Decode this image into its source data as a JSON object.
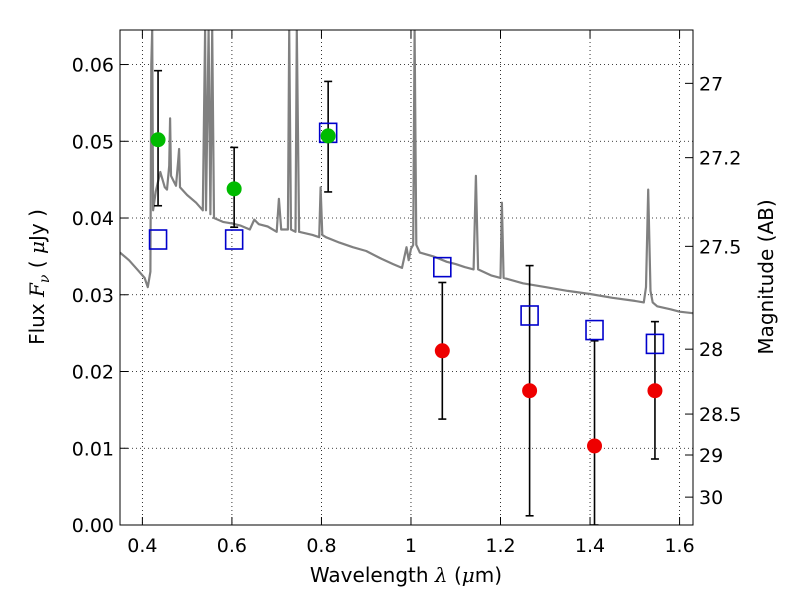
{
  "chart_data": {
    "type": "scatter",
    "xlabel": {
      "pre": "Wavelength  ",
      "sym": "λ",
      "mid": " (",
      "mu": "μ",
      "post": "m)"
    },
    "ylabel": {
      "pre": "Flux  ",
      "sym": "F",
      "sub": "ν",
      "mid": "  ( ",
      "mu": "μ",
      "post": "Jy )"
    },
    "y2label": "Magnitude (AB)",
    "xlim": [
      0.35,
      1.63
    ],
    "ylim": [
      0.0,
      0.0645
    ],
    "grid": true,
    "x_ticks": [
      {
        "v": 0.4,
        "label": "0.4"
      },
      {
        "v": 0.6,
        "label": "0.6"
      },
      {
        "v": 0.8,
        "label": "0.8"
      },
      {
        "v": 1.0,
        "label": "1"
      },
      {
        "v": 1.2,
        "label": "1.2"
      },
      {
        "v": 1.4,
        "label": "1.4"
      },
      {
        "v": 1.6,
        "label": "1.6"
      }
    ],
    "y_ticks": [
      {
        "v": 0.0,
        "label": "0.00"
      },
      {
        "v": 0.01,
        "label": "0.01"
      },
      {
        "v": 0.02,
        "label": "0.02"
      },
      {
        "v": 0.03,
        "label": "0.03"
      },
      {
        "v": 0.04,
        "label": "0.04"
      },
      {
        "v": 0.05,
        "label": "0.05"
      },
      {
        "v": 0.06,
        "label": "0.06"
      }
    ],
    "y2_ticks": [
      {
        "mag": 27,
        "label": "27"
      },
      {
        "mag": 27.2,
        "label": "27.2"
      },
      {
        "mag": 27.5,
        "label": "27.5"
      },
      {
        "mag": 28,
        "label": "28"
      },
      {
        "mag": 28.5,
        "label": "28.5"
      },
      {
        "mag": 29,
        "label": "29"
      },
      {
        "mag": 30,
        "label": "30"
      }
    ],
    "series": [
      {
        "kind": "model_spectrum",
        "color": "#808080",
        "points": [
          [
            0.35,
            0.0355
          ],
          [
            0.37,
            0.0345
          ],
          [
            0.39,
            0.0332
          ],
          [
            0.405,
            0.0322
          ],
          [
            0.412,
            0.031
          ],
          [
            0.418,
            0.033
          ],
          [
            0.42,
            0.06
          ],
          [
            0.422,
            0.0645
          ],
          [
            0.424,
            0.041
          ],
          [
            0.43,
            0.0435
          ],
          [
            0.44,
            0.046
          ],
          [
            0.45,
            0.044
          ],
          [
            0.455,
            0.0437
          ],
          [
            0.46,
            0.0468
          ],
          [
            0.462,
            0.053
          ],
          [
            0.464,
            0.0455
          ],
          [
            0.47,
            0.0448
          ],
          [
            0.475,
            0.0442
          ],
          [
            0.48,
            0.0475
          ],
          [
            0.482,
            0.049
          ],
          [
            0.484,
            0.044
          ],
          [
            0.5,
            0.043
          ],
          [
            0.52,
            0.042
          ],
          [
            0.535,
            0.041
          ],
          [
            0.54,
            0.0645
          ],
          [
            0.542,
            0.041
          ],
          [
            0.548,
            0.0645
          ],
          [
            0.552,
            0.0405
          ],
          [
            0.556,
            0.0645
          ],
          [
            0.56,
            0.04
          ],
          [
            0.58,
            0.0395
          ],
          [
            0.6,
            0.0393
          ],
          [
            0.62,
            0.039
          ],
          [
            0.64,
            0.0385
          ],
          [
            0.65,
            0.0398
          ],
          [
            0.655,
            0.0395
          ],
          [
            0.66,
            0.0392
          ],
          [
            0.68,
            0.0389
          ],
          [
            0.7,
            0.0382
          ],
          [
            0.705,
            0.0425
          ],
          [
            0.71,
            0.0385
          ],
          [
            0.725,
            0.0385
          ],
          [
            0.728,
            0.0645
          ],
          [
            0.732,
            0.0385
          ],
          [
            0.742,
            0.0382
          ],
          [
            0.745,
            0.0645
          ],
          [
            0.75,
            0.0382
          ],
          [
            0.78,
            0.0378
          ],
          [
            0.795,
            0.0375
          ],
          [
            0.798,
            0.044
          ],
          [
            0.802,
            0.0378
          ],
          [
            0.81,
            0.0375
          ],
          [
            0.84,
            0.0368
          ],
          [
            0.87,
            0.0362
          ],
          [
            0.9,
            0.0357
          ],
          [
            0.93,
            0.0348
          ],
          [
            0.96,
            0.034
          ],
          [
            0.98,
            0.0335
          ],
          [
            0.99,
            0.0362
          ],
          [
            0.995,
            0.0345
          ],
          [
            1.0,
            0.036
          ],
          [
            1.005,
            0.0365
          ],
          [
            1.008,
            0.0645
          ],
          [
            1.012,
            0.0365
          ],
          [
            1.02,
            0.0355
          ],
          [
            1.05,
            0.035
          ],
          [
            1.08,
            0.0343
          ],
          [
            1.1,
            0.034
          ],
          [
            1.12,
            0.0336
          ],
          [
            1.14,
            0.0333
          ],
          [
            1.145,
            0.0455
          ],
          [
            1.15,
            0.0333
          ],
          [
            1.18,
            0.0325
          ],
          [
            1.2,
            0.0322
          ],
          [
            1.203,
            0.042
          ],
          [
            1.207,
            0.0322
          ],
          [
            1.25,
            0.0315
          ],
          [
            1.3,
            0.031
          ],
          [
            1.35,
            0.0305
          ],
          [
            1.4,
            0.0301
          ],
          [
            1.45,
            0.0296
          ],
          [
            1.5,
            0.0292
          ],
          [
            1.52,
            0.029
          ],
          [
            1.525,
            0.031
          ],
          [
            1.53,
            0.0437
          ],
          [
            1.535,
            0.0305
          ],
          [
            1.54,
            0.029
          ],
          [
            1.55,
            0.0285
          ],
          [
            1.58,
            0.0281
          ],
          [
            1.6,
            0.0278
          ],
          [
            1.63,
            0.0276
          ]
        ]
      },
      {
        "kind": "model_photometry",
        "marker": "open-square",
        "color": "#0000cc",
        "points": [
          {
            "x": 0.435,
            "y": 0.0372
          },
          {
            "x": 0.605,
            "y": 0.0372
          },
          {
            "x": 0.815,
            "y": 0.0511
          },
          {
            "x": 1.07,
            "y": 0.0336
          },
          {
            "x": 1.265,
            "y": 0.0273
          },
          {
            "x": 1.41,
            "y": 0.0254
          },
          {
            "x": 1.545,
            "y": 0.0236
          }
        ]
      },
      {
        "kind": "detections",
        "marker": "filled-circle",
        "color": "#00bb00",
        "points": [
          {
            "x": 0.435,
            "y": 0.0502,
            "lo": 0.0416,
            "hi": 0.0592
          },
          {
            "x": 0.605,
            "y": 0.0438,
            "lo": 0.0388,
            "hi": 0.0492
          },
          {
            "x": 0.815,
            "y": 0.0507,
            "lo": 0.0434,
            "hi": 0.0578
          }
        ]
      },
      {
        "kind": "low_significance",
        "marker": "filled-circle",
        "color": "#ee0000",
        "points": [
          {
            "x": 1.07,
            "y": 0.0227,
            "lo": 0.0138,
            "hi": 0.0316
          },
          {
            "x": 1.265,
            "y": 0.0175,
            "lo": 0.0012,
            "hi": 0.0338
          },
          {
            "x": 1.41,
            "y": 0.0103,
            "lo": 0.0,
            "hi": 0.024
          },
          {
            "x": 1.545,
            "y": 0.0175,
            "lo": 0.0086,
            "hi": 0.0265
          }
        ]
      }
    ]
  }
}
